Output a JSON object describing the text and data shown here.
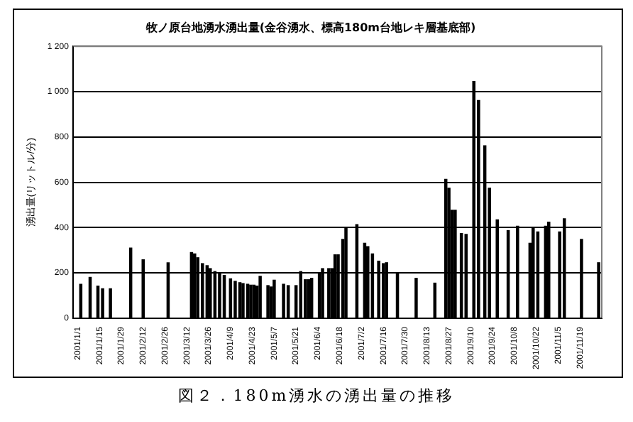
{
  "chart_data": {
    "type": "bar",
    "title": "牧ノ原台地湧水湧出量(金谷湧水、標高180m台地レキ層基底部)",
    "ylabel": "湧出量(リットル/分)",
    "annotations": [
      "図２．180m湧水の湧出量の推移"
    ],
    "x": [
      "2001-01-03",
      "2001-01-09",
      "2001-01-14",
      "2001-01-17",
      "2001-01-22",
      "2001-02-04",
      "2001-02-12",
      "2001-02-28",
      "2001-03-15",
      "2001-03-17",
      "2001-03-19",
      "2001-03-22",
      "2001-03-25",
      "2001-03-27",
      "2001-03-30",
      "2001-04-02",
      "2001-04-05",
      "2001-04-09",
      "2001-04-12",
      "2001-04-15",
      "2001-04-17",
      "2001-04-20",
      "2001-04-22",
      "2001-04-24",
      "2001-04-26",
      "2001-04-28",
      "2001-05-03",
      "2001-05-05",
      "2001-05-07",
      "2001-05-13",
      "2001-05-16",
      "2001-05-21",
      "2001-05-24",
      "2001-05-27",
      "2001-05-29",
      "2001-05-31",
      "2001-06-05",
      "2001-06-07",
      "2001-06-11",
      "2001-06-13",
      "2001-06-15",
      "2001-06-17",
      "2001-06-20",
      "2001-06-22",
      "2001-06-29",
      "2001-07-04",
      "2001-07-06",
      "2001-07-09",
      "2001-07-13",
      "2001-07-16",
      "2001-07-18",
      "2001-07-25",
      "2001-08-06",
      "2001-08-18",
      "2001-08-25",
      "2001-08-27",
      "2001-08-29",
      "2001-08-31",
      "2001-09-04",
      "2001-09-07",
      "2001-09-12",
      "2001-09-15",
      "2001-09-19",
      "2001-09-22",
      "2001-09-27",
      "2001-10-04",
      "2001-10-10",
      "2001-10-18",
      "2001-10-20",
      "2001-10-23",
      "2001-10-28",
      "2001-10-30",
      "2001-11-06",
      "2001-11-09",
      "2001-11-20",
      "2001-12-01"
    ],
    "values": [
      150,
      180,
      142,
      130,
      130,
      310,
      258,
      245,
      290,
      284,
      267,
      241,
      232,
      219,
      206,
      198,
      189,
      174,
      163,
      157,
      153,
      150,
      146,
      146,
      142,
      185,
      144,
      138,
      168,
      150,
      144,
      144,
      206,
      170,
      170,
      176,
      198,
      219,
      219,
      219,
      280,
      280,
      348,
      398,
      413,
      331,
      316,
      284,
      252,
      241,
      245,
      198,
      176,
      155,
      613,
      574,
      477,
      477,
      374,
      370,
      1045,
      961,
      761,
      574,
      434,
      387,
      406,
      331,
      398,
      381,
      406,
      424,
      381,
      439,
      348,
      245
    ],
    "color": "#000000",
    "ylim": [
      0,
      1200
    ],
    "yticks": [
      0,
      200,
      400,
      600,
      800,
      {
        "value": 1000,
        "label": "1 000"
      },
      {
        "value": 1200,
        "label": "1 200"
      }
    ],
    "xlim": [
      "2000-12-29",
      "2001-12-03"
    ],
    "xticks": [
      {
        "value": "2001-01-01",
        "label": "2001/1/1"
      },
      {
        "value": "2001-01-15",
        "label": "2001/1/15"
      },
      {
        "value": "2001-01-29",
        "label": "2001/1/29"
      },
      {
        "value": "2001-02-12",
        "label": "2001/2/12"
      },
      {
        "value": "2001-02-26",
        "label": "2001/2/26"
      },
      {
        "value": "2001-03-12",
        "label": "2001/3/12"
      },
      {
        "value": "2001-03-26",
        "label": "2001/3/26"
      },
      {
        "value": "2001-04-09",
        "label": "2001/4/9"
      },
      {
        "value": "2001-04-23",
        "label": "2001/4/23"
      },
      {
        "value": "2001-05-07",
        "label": "2001/5/7"
      },
      {
        "value": "2001-05-21",
        "label": "2001/5/21"
      },
      {
        "value": "2001-06-04",
        "label": "2001/6/4"
      },
      {
        "value": "2001-06-18",
        "label": "2001/6/18"
      },
      {
        "value": "2001-07-02",
        "label": "2001/7/2"
      },
      {
        "value": "2001-07-16",
        "label": "2001/7/16"
      },
      {
        "value": "2001-07-30",
        "label": "2001/7/30"
      },
      {
        "value": "2001-08-13",
        "label": "2001/8/13"
      },
      {
        "value": "2001-08-27",
        "label": "2001/8/27"
      },
      {
        "value": "2001-09-10",
        "label": "2001/9/10"
      },
      {
        "value": "2001-09-24",
        "label": "2001/9/24"
      },
      {
        "value": "2001-10-08",
        "label": "2001/10/8"
      },
      {
        "value": "2001-10-22",
        "label": "2001/10/22"
      },
      {
        "value": "2001-11-05",
        "label": "2001/11/5"
      },
      {
        "value": "2001-11-19",
        "label": "2001/11/19"
      }
    ],
    "grid": "y"
  }
}
